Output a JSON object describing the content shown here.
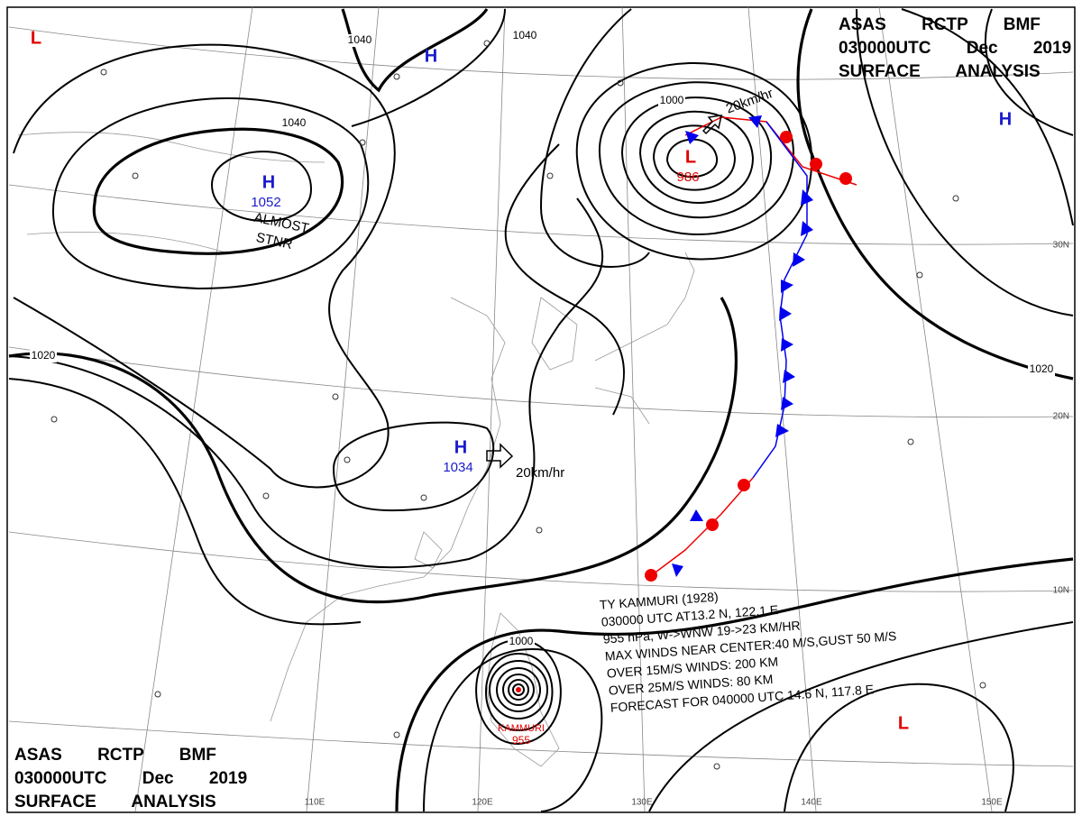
{
  "header": {
    "lines": [
      "ASAS RCTP BMF",
      "030000UTC Dec 2019",
      "SURFACE ANALYSIS"
    ]
  },
  "pressure_systems": [
    {
      "symbol": "L"
    },
    {
      "symbol": "H"
    },
    {
      "symbol": "H",
      "pressure": 1052
    },
    {
      "symbol": "H",
      "pressure": 1034
    },
    {
      "symbol": "L",
      "pressure": 986
    },
    {
      "symbol": "H"
    },
    {
      "symbol": "L"
    }
  ],
  "typhoon": {
    "name": "KAMMURI",
    "pressure": 955,
    "info": [
      "TY KAMMURI (1928)",
      "030000 UTC AT13.2 N, 122.1 E",
      "955 hPa, W->WNW 19->23 KM/HR",
      "MAX WINDS NEAR CENTER:40 M/S,GUST 50 M/S",
      "OVER 15M/S WINDS: 200 KM",
      "OVER 25M/S WINDS: 80 KM",
      "FORECAST FOR 040000 UTC 14.6 N, 117.8 E"
    ]
  },
  "isobar_labels": [
    1040,
    1040,
    1040,
    1020,
    1020,
    1000,
    1000
  ],
  "stationary_note": [
    "ALMOST",
    "STNR"
  ],
  "movement_labels": [
    "20km/hr",
    "20km/hr"
  ],
  "latitude_labels": [
    "30N",
    "20N",
    "10N"
  ],
  "longitude_labels": [
    "110E",
    "120E",
    "130E",
    "140E",
    "150E"
  ]
}
